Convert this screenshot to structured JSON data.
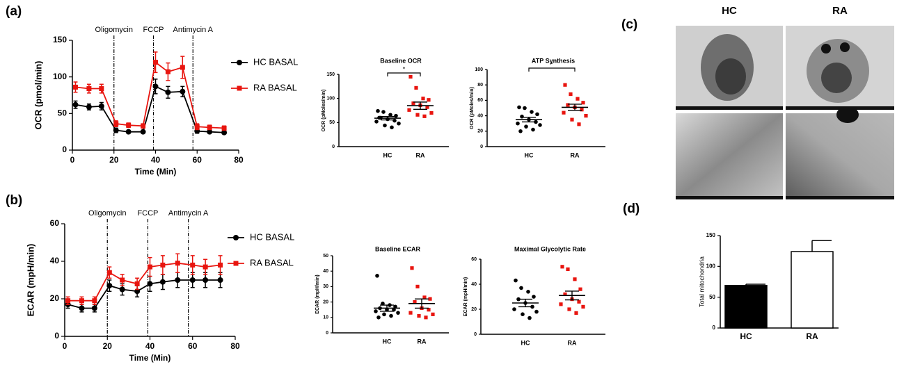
{
  "panel_labels": [
    "(a)",
    "(b)",
    "(c)",
    "(d)"
  ],
  "micrograph_labels": [
    "HC",
    "RA"
  ],
  "chart_data": [
    {
      "type": "line",
      "xlabel": "Time (Min)",
      "ylabel": "OCR (pmol/min)",
      "xlim": [
        0,
        80
      ],
      "xticks": [
        0,
        20,
        40,
        60,
        80
      ],
      "ylim": [
        0,
        150
      ],
      "yticks": [
        0,
        50,
        100,
        150
      ],
      "annotations": [
        {
          "text": "Oligomycin",
          "x": 20
        },
        {
          "text": "FCCP",
          "x": 39
        },
        {
          "text": "Antimycin A",
          "x": 58
        }
      ],
      "x": [
        1.5,
        8,
        14,
        21,
        27,
        34,
        40,
        46,
        53,
        60,
        66,
        73
      ],
      "series": [
        {
          "name": "HC BASAL",
          "color": "#000000",
          "marker": "circle",
          "values": [
            62,
            59,
            60,
            27,
            25,
            25,
            87,
            79,
            80,
            26,
            25,
            24
          ],
          "errors": [
            5,
            4,
            5,
            3,
            2,
            2,
            10,
            8,
            7,
            3,
            2,
            2
          ]
        },
        {
          "name": "RA BASAL",
          "color": "#e8150f",
          "marker": "square",
          "values": [
            86,
            84,
            84,
            36,
            34,
            33,
            120,
            107,
            113,
            32,
            31,
            30
          ],
          "errors": [
            7,
            6,
            6,
            4,
            3,
            3,
            14,
            12,
            15,
            4,
            3,
            3
          ]
        }
      ]
    },
    {
      "type": "dot",
      "title": "Baseline OCR",
      "ylabel": "OCR (pMoles/min)",
      "annotation": "*",
      "ylim": [
        0,
        150
      ],
      "yticks": [
        0,
        50,
        100,
        150
      ],
      "categories": [
        "HC",
        "RA"
      ],
      "colors": [
        "#000000",
        "#e8150f"
      ],
      "markers": [
        "circle",
        "square"
      ],
      "values": [
        [
          74,
          72,
          66,
          64,
          60,
          57,
          54,
          52,
          48,
          44,
          40,
          60
        ],
        [
          145,
          122,
          100,
          97,
          90,
          86,
          82,
          76,
          70,
          66,
          63
        ]
      ],
      "means": [
        59,
        85
      ],
      "sems": [
        3.5,
        7.5
      ]
    },
    {
      "type": "dot",
      "title": "ATP Synthesis",
      "ylabel": "OCR (pMoles/min)",
      "annotation": "*",
      "ylim": [
        0,
        100
      ],
      "yticks": [
        0,
        20,
        40,
        60,
        80,
        100
      ],
      "categories": [
        "HC",
        "RA"
      ],
      "colors": [
        "#000000",
        "#e8150f"
      ],
      "markers": [
        "circle",
        "square"
      ],
      "values": [
        [
          51,
          50,
          45,
          42,
          39,
          35,
          32,
          30,
          28,
          26,
          22,
          20
        ],
        [
          80,
          68,
          62,
          57,
          54,
          51,
          48,
          44,
          40,
          35,
          29
        ]
      ],
      "means": [
        35,
        51
      ],
      "sems": [
        3,
        4
      ]
    },
    {
      "type": "line",
      "xlabel": "Time (Min)",
      "ylabel": "ECAR (mpH/min)",
      "xlim": [
        0,
        80
      ],
      "xticks": [
        0,
        20,
        40,
        60,
        80
      ],
      "ylim": [
        0,
        60
      ],
      "yticks": [
        0,
        20,
        40,
        60
      ],
      "annotations": [
        {
          "text": "Oligomycin",
          "x": 20
        },
        {
          "text": "FCCP",
          "x": 39
        },
        {
          "text": "Antimycin A",
          "x": 58
        }
      ],
      "x": [
        1.5,
        8,
        14,
        21,
        27,
        34,
        40,
        46,
        53,
        60,
        66,
        73
      ],
      "series": [
        {
          "name": "HC BASAL",
          "color": "#000000",
          "marker": "circle",
          "values": [
            17,
            15,
            15,
            27,
            25,
            24,
            28,
            29,
            30,
            30,
            30,
            30
          ],
          "errors": [
            2,
            2,
            2,
            3,
            3,
            3,
            4,
            4,
            4,
            4,
            4,
            4
          ]
        },
        {
          "name": "RA BASAL",
          "color": "#e8150f",
          "marker": "square",
          "values": [
            19,
            19,
            19,
            34,
            30,
            28,
            37,
            38,
            39,
            38,
            37,
            38
          ],
          "errors": [
            2,
            2,
            2,
            3,
            3,
            3,
            5,
            5,
            5,
            5,
            4,
            5
          ]
        }
      ]
    },
    {
      "type": "dot",
      "title": "Baseline ECAR",
      "ylabel": "ECAR (mpH/min)",
      "ylim": [
        0,
        50
      ],
      "yticks": [
        0,
        10,
        20,
        30,
        40,
        50
      ],
      "categories": [
        "HC",
        "RA"
      ],
      "colors": [
        "#000000",
        "#e8150f"
      ],
      "markers": [
        "circle",
        "square"
      ],
      "values": [
        [
          37,
          19,
          18,
          17,
          16,
          15,
          15,
          14,
          13,
          12,
          11,
          10
        ],
        [
          42,
          30,
          23,
          22,
          20,
          16,
          15,
          13,
          12,
          11,
          10
        ]
      ],
      "means": [
        16,
        19
      ],
      "sems": [
        2,
        3
      ]
    },
    {
      "type": "dot",
      "title": "Maximal Glycolytic Rate",
      "ylabel": "ECAR (mpH/min)",
      "ylim": [
        0,
        60
      ],
      "yticks": [
        0,
        20,
        40,
        60
      ],
      "categories": [
        "HC",
        "RA"
      ],
      "colors": [
        "#000000",
        "#e8150f"
      ],
      "markers": [
        "circle",
        "square"
      ],
      "values": [
        [
          43,
          37,
          34,
          30,
          28,
          25,
          22,
          20,
          18,
          16,
          13
        ],
        [
          54,
          52,
          44,
          36,
          32,
          28,
          26,
          24,
          22,
          20,
          17
        ]
      ],
      "means": [
        25,
        31
      ],
      "sems": [
        3,
        3.5
      ]
    },
    {
      "type": "bar",
      "ylabel": "Total mitochondria",
      "ylim": [
        0,
        150
      ],
      "yticks": [
        0,
        50,
        100,
        150
      ],
      "categories": [
        "HC",
        "RA"
      ],
      "colors": [
        "#000000",
        "#ffffff"
      ],
      "values": [
        69,
        124
      ],
      "errors": [
        2,
        18
      ]
    }
  ]
}
